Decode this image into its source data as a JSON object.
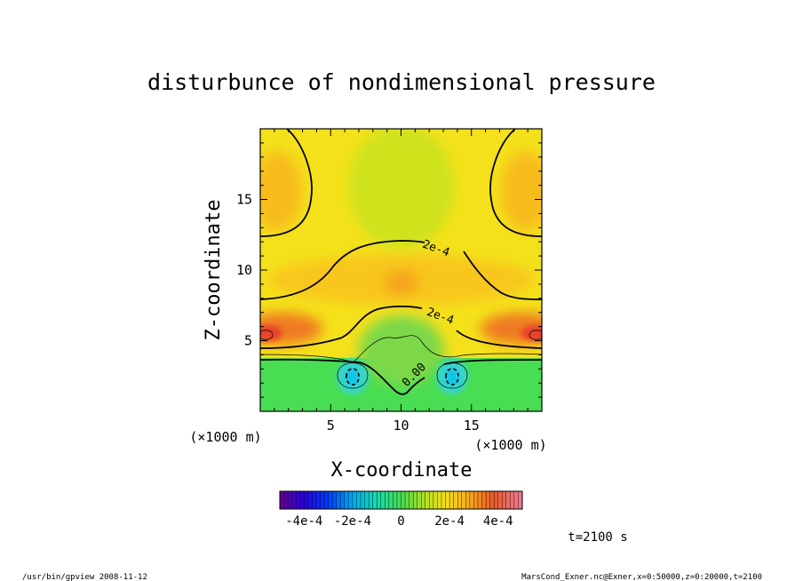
{
  "chart_data": {
    "type": "heatmap",
    "title": "disturbunce of nondimensional pressure",
    "xlabel": "X-coordinate",
    "ylabel": "Z-coordinate",
    "x_unit": "(×1000 m)",
    "y_unit": "(×1000 m)",
    "xlim": [
      0,
      20
    ],
    "ylim": [
      0,
      20
    ],
    "x_ticks": [
      5,
      10,
      15
    ],
    "y_ticks": [
      5,
      10,
      15
    ],
    "x_tick_labels": [
      "5",
      "10",
      "15"
    ],
    "y_tick_labels": [
      "5",
      "10",
      "15"
    ],
    "contour_labels": [
      {
        "text": "2e-4",
        "x": 12.4,
        "z": 11.3
      },
      {
        "text": "2e-4",
        "x": 12.7,
        "z": 6.5
      },
      {
        "text": "0.00",
        "x": 11.1,
        "z": 2.4
      }
    ],
    "colorbar": {
      "range": [
        -0.0005,
        0.0005
      ],
      "tick_labels": [
        "-4e-4",
        "-2e-4",
        "0",
        "2e-4",
        "4e-4"
      ],
      "tick_values": [
        -0.0004,
        -0.0002,
        0,
        0.0002,
        0.0004
      ]
    },
    "time_label": "t=2100 s",
    "footer_left": "/usr/bin/gpview   2008-11-12",
    "footer_right": "MarsCond_Exner.nc@Exner,x=0:50000,z=0:20000,t=2100"
  }
}
